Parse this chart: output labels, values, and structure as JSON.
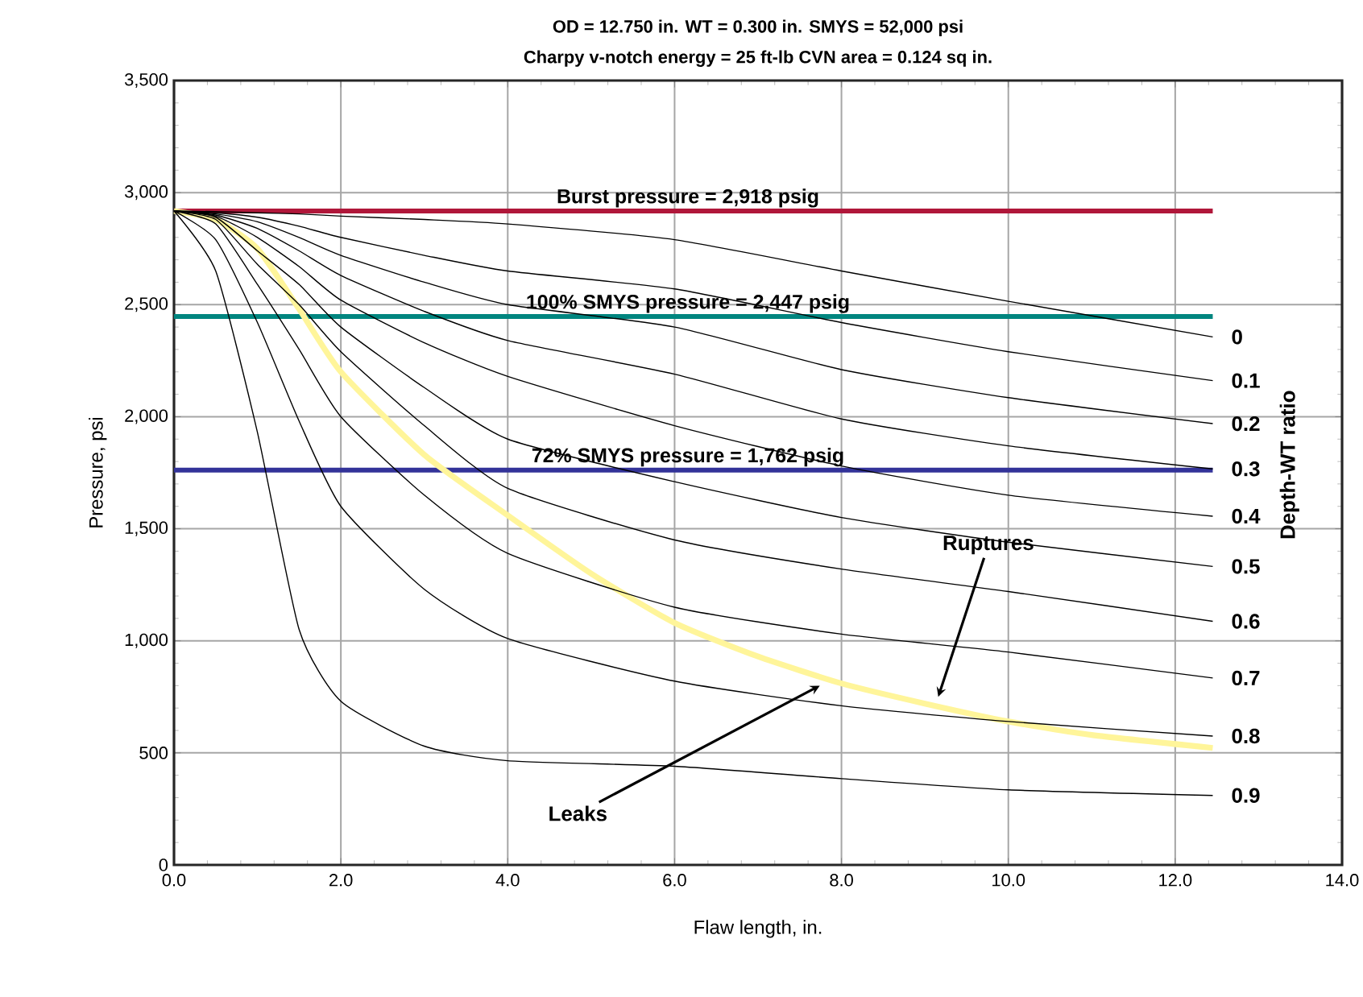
{
  "chart_data": {
    "type": "line",
    "title": "OD = 12.750 in.     WT = 0.300 in.     SMYS = 52,000 psi",
    "subtitle": "Charpy v-notch energy = 25 ft-lb     CVN area = 0.124 sq in.",
    "xlabel": "Flaw length, in.",
    "ylabel": "Pressure, psi",
    "legend_title": "Depth-WT ratio",
    "x": [
      0,
      0.5,
      1,
      1.5,
      2,
      3,
      4,
      6,
      8,
      10,
      12.45
    ],
    "series": [
      {
        "name": "0",
        "color": "#000000",
        "values": [
          2918,
          2915,
          2910,
          2905,
          2895,
          2880,
          2860,
          2790,
          2650,
          2515,
          2356
        ]
      },
      {
        "name": "0.1",
        "color": "#000000",
        "values": [
          2918,
          2910,
          2890,
          2850,
          2800,
          2720,
          2650,
          2570,
          2420,
          2290,
          2161
        ]
      },
      {
        "name": "0.2",
        "color": "#000000",
        "values": [
          2918,
          2905,
          2870,
          2800,
          2720,
          2600,
          2500,
          2400,
          2210,
          2085,
          1969
        ]
      },
      {
        "name": "0.3",
        "color": "#000000",
        "values": [
          2918,
          2900,
          2840,
          2740,
          2630,
          2470,
          2340,
          2190,
          1990,
          1870,
          1767
        ]
      },
      {
        "name": "0.4",
        "color": "#000000",
        "values": [
          2918,
          2895,
          2800,
          2670,
          2520,
          2330,
          2180,
          1960,
          1780,
          1650,
          1556
        ]
      },
      {
        "name": "0.5",
        "color": "#000000",
        "values": [
          2918,
          2890,
          2740,
          2590,
          2400,
          2130,
          1900,
          1710,
          1550,
          1440,
          1332
        ]
      },
      {
        "name": "0.6",
        "color": "#000000",
        "values": [
          2918,
          2880,
          2680,
          2500,
          2290,
          1960,
          1680,
          1450,
          1320,
          1220,
          1087
        ]
      },
      {
        "name": "0.7",
        "color": "#000000",
        "values": [
          2918,
          2860,
          2590,
          2300,
          2000,
          1650,
          1390,
          1150,
          1030,
          950,
          834
        ]
      },
      {
        "name": "0.8",
        "color": "#000000",
        "values": [
          2918,
          2790,
          2420,
          1980,
          1600,
          1230,
          1010,
          820,
          710,
          640,
          575
        ]
      },
      {
        "name": "0.9",
        "color": "#000000",
        "values": [
          2918,
          2650,
          1930,
          1050,
          730,
          530,
          465,
          440,
          385,
          335,
          310
        ]
      },
      {
        "color": "#fff59a",
        "x": [
          0,
          0.5,
          1,
          1.5,
          2,
          3,
          4,
          5,
          6,
          7,
          8,
          9,
          10,
          11,
          12.45
        ],
        "values": [
          2918,
          2880,
          2750,
          2480,
          2200,
          1830,
          1560,
          1300,
          1080,
          930,
          810,
          720,
          640,
          580,
          522
        ]
      }
    ],
    "ref_lines": [
      {
        "axis": "y",
        "value": 2918,
        "label": "Burst pressure = 2,918 psig",
        "color": "#b0173a"
      },
      {
        "axis": "y",
        "value": 2447,
        "label": "100% SMYS pressure = 2,447 psig",
        "color": "#00857f"
      },
      {
        "axis": "y",
        "value": 1762,
        "label": "72% SMYS pressure = 1,762 psig",
        "color": "#333399"
      }
    ],
    "annotations": [
      {
        "text": "Ruptures",
        "x": 9.16,
        "y": 750
      },
      {
        "text": "Leaks",
        "x": 7.74,
        "y": 800
      }
    ],
    "xlim": [
      0,
      14
    ],
    "ylim": [
      0,
      3500
    ],
    "xticks": [
      {
        "value": 0,
        "label": "0.0"
      },
      {
        "value": 2,
        "label": "2.0"
      },
      {
        "value": 4,
        "label": "4.0"
      },
      {
        "value": 6,
        "label": "6.0"
      },
      {
        "value": 8,
        "label": "8.0"
      },
      {
        "value": 10,
        "label": "10.0"
      },
      {
        "value": 12,
        "label": "12.0"
      },
      {
        "value": 14,
        "label": "14.0"
      }
    ],
    "yticks": [
      0,
      500,
      {
        "value": 1000,
        "label": "1,000"
      },
      {
        "value": 1500,
        "label": "1,500"
      },
      {
        "value": 2000,
        "label": "2,000"
      },
      {
        "value": 2500,
        "label": "2,500"
      },
      {
        "value": 3000,
        "label": "3,000"
      },
      {
        "value": 3500,
        "label": "3,500"
      }
    ],
    "grid": true
  }
}
